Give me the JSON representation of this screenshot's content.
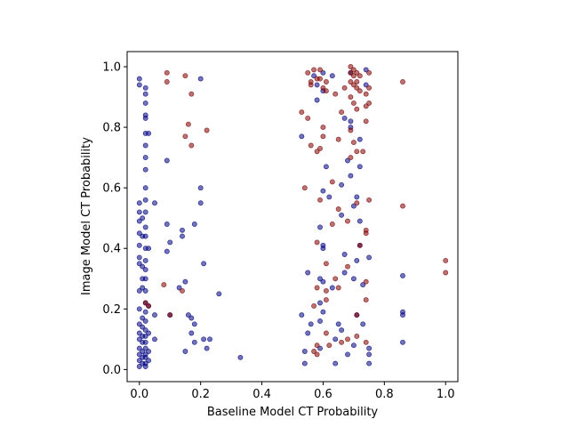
{
  "chart_data": {
    "type": "scatter",
    "title": "",
    "xlabel": "Baseline Model CT Probability",
    "ylabel": "Image Model CT Probability",
    "xlim": [
      -0.04,
      1.04
    ],
    "ylim": [
      -0.04,
      1.05
    ],
    "xticks": [
      0.0,
      0.2,
      0.4,
      0.6,
      0.8,
      1.0
    ],
    "xtick_labels": [
      "0.0",
      "0.2",
      "0.4",
      "0.6",
      "0.8",
      "1.0"
    ],
    "yticks": [
      0.0,
      0.2,
      0.4,
      0.6,
      0.8,
      1.0
    ],
    "ytick_labels": [
      "0.0",
      "0.2",
      "0.4",
      "0.6",
      "0.8",
      "1.0"
    ],
    "grid": false,
    "legend": "none",
    "series": [
      {
        "color": "#00007f",
        "alpha": 0.55,
        "points": [
          [
            0.0,
            0.96
          ],
          [
            0.0,
            0.94
          ],
          [
            0.0,
            0.55
          ],
          [
            0.0,
            0.52
          ],
          [
            0.0,
            0.49
          ],
          [
            0.0,
            0.45
          ],
          [
            0.0,
            0.41
          ],
          [
            0.0,
            0.37
          ],
          [
            0.0,
            0.35
          ],
          [
            0.0,
            0.26
          ],
          [
            0.0,
            0.2
          ],
          [
            0.0,
            0.15
          ],
          [
            0.0,
            0.12
          ],
          [
            0.0,
            0.1
          ],
          [
            0.0,
            0.07
          ],
          [
            0.0,
            0.05
          ],
          [
            0.0,
            0.03
          ],
          [
            0.0,
            0.01
          ],
          [
            0.01,
            0.5
          ],
          [
            0.01,
            0.44
          ],
          [
            0.01,
            0.34
          ],
          [
            0.01,
            0.3
          ],
          [
            0.01,
            0.27
          ],
          [
            0.01,
            0.17
          ],
          [
            0.01,
            0.14
          ],
          [
            0.01,
            0.11
          ],
          [
            0.01,
            0.09
          ],
          [
            0.01,
            0.06
          ],
          [
            0.01,
            0.04
          ],
          [
            0.01,
            0.02
          ],
          [
            0.02,
            0.93
          ],
          [
            0.02,
            0.91
          ],
          [
            0.02,
            0.88
          ],
          [
            0.02,
            0.84
          ],
          [
            0.02,
            0.83
          ],
          [
            0.02,
            0.78
          ],
          [
            0.02,
            0.74
          ],
          [
            0.02,
            0.7
          ],
          [
            0.02,
            0.66
          ],
          [
            0.02,
            0.6
          ],
          [
            0.02,
            0.56
          ],
          [
            0.02,
            0.52
          ],
          [
            0.02,
            0.47
          ],
          [
            0.02,
            0.44
          ],
          [
            0.02,
            0.4
          ],
          [
            0.02,
            0.36
          ],
          [
            0.02,
            0.33
          ],
          [
            0.02,
            0.3
          ],
          [
            0.02,
            0.26
          ],
          [
            0.02,
            0.22
          ],
          [
            0.02,
            0.19
          ],
          [
            0.02,
            0.16
          ],
          [
            0.02,
            0.13
          ],
          [
            0.02,
            0.11
          ],
          [
            0.02,
            0.09
          ],
          [
            0.02,
            0.07
          ],
          [
            0.02,
            0.05
          ],
          [
            0.02,
            0.04
          ],
          [
            0.02,
            0.02
          ],
          [
            0.02,
            0.01
          ],
          [
            0.03,
            0.78
          ],
          [
            0.03,
            0.4
          ],
          [
            0.03,
            0.21
          ],
          [
            0.03,
            0.12
          ],
          [
            0.03,
            0.06
          ],
          [
            0.03,
            0.03
          ],
          [
            0.05,
            0.55
          ],
          [
            0.05,
            0.18
          ],
          [
            0.05,
            0.1
          ],
          [
            0.09,
            0.69
          ],
          [
            0.09,
            0.48
          ],
          [
            0.09,
            0.39
          ],
          [
            0.1,
            0.42
          ],
          [
            0.1,
            0.18
          ],
          [
            0.13,
            0.27
          ],
          [
            0.14,
            0.46
          ],
          [
            0.14,
            0.44
          ],
          [
            0.15,
            0.29
          ],
          [
            0.15,
            0.06
          ],
          [
            0.16,
            0.18
          ],
          [
            0.17,
            0.17
          ],
          [
            0.17,
            0.12
          ],
          [
            0.18,
            0.48
          ],
          [
            0.18,
            0.15
          ],
          [
            0.18,
            0.09
          ],
          [
            0.2,
            0.96
          ],
          [
            0.2,
            0.6
          ],
          [
            0.2,
            0.55
          ],
          [
            0.21,
            0.35
          ],
          [
            0.21,
            0.1
          ],
          [
            0.22,
            0.07
          ],
          [
            0.23,
            0.1
          ],
          [
            0.26,
            0.25
          ],
          [
            0.33,
            0.04
          ],
          [
            0.53,
            0.77
          ],
          [
            0.53,
            0.18
          ],
          [
            0.54,
            0.06
          ],
          [
            0.54,
            0.02
          ],
          [
            0.55,
            0.12
          ],
          [
            0.55,
            0.32
          ],
          [
            0.56,
            0.15
          ],
          [
            0.57,
            0.97
          ],
          [
            0.58,
            0.94
          ],
          [
            0.58,
            0.89
          ],
          [
            0.59,
            0.47
          ],
          [
            0.59,
            0.3
          ],
          [
            0.59,
            0.22
          ],
          [
            0.59,
            0.16
          ],
          [
            0.59,
            0.07
          ],
          [
            0.6,
            0.98
          ],
          [
            0.6,
            0.92
          ],
          [
            0.6,
            0.59
          ],
          [
            0.6,
            0.41
          ],
          [
            0.6,
            0.4
          ],
          [
            0.6,
            0.29
          ],
          [
            0.6,
            0.19
          ],
          [
            0.61,
            0.67
          ],
          [
            0.62,
            0.57
          ],
          [
            0.63,
            0.97
          ],
          [
            0.63,
            0.27
          ],
          [
            0.64,
            0.1
          ],
          [
            0.64,
            0.02
          ],
          [
            0.65,
            0.15
          ],
          [
            0.66,
            0.61
          ],
          [
            0.66,
            0.51
          ],
          [
            0.66,
            0.13
          ],
          [
            0.67,
            0.83
          ],
          [
            0.67,
            0.38
          ],
          [
            0.67,
            0.32
          ],
          [
            0.68,
            0.69
          ],
          [
            0.68,
            0.05
          ],
          [
            0.69,
            0.98
          ],
          [
            0.69,
            0.82
          ],
          [
            0.69,
            0.8
          ],
          [
            0.69,
            0.64
          ],
          [
            0.7,
            0.54
          ],
          [
            0.7,
            0.3
          ],
          [
            0.7,
            0.08
          ],
          [
            0.71,
            0.57
          ],
          [
            0.71,
            0.36
          ],
          [
            0.71,
            0.18
          ],
          [
            0.72,
            0.76
          ],
          [
            0.72,
            0.67
          ],
          [
            0.72,
            0.49
          ],
          [
            0.72,
            0.41
          ],
          [
            0.73,
            0.28
          ],
          [
            0.73,
            0.15
          ],
          [
            0.74,
            0.99
          ],
          [
            0.74,
            0.94
          ],
          [
            0.75,
            0.37
          ],
          [
            0.75,
            0.07
          ],
          [
            0.75,
            0.05
          ],
          [
            0.75,
            0.02
          ],
          [
            0.86,
            0.31
          ],
          [
            0.86,
            0.19
          ],
          [
            0.86,
            0.18
          ],
          [
            0.86,
            0.09
          ]
        ]
      },
      {
        "color": "#7f0000",
        "alpha": 0.55,
        "points": [
          [
            0.02,
            0.22
          ],
          [
            0.03,
            0.21
          ],
          [
            0.08,
            0.28
          ],
          [
            0.09,
            0.98
          ],
          [
            0.09,
            0.95
          ],
          [
            0.1,
            0.18
          ],
          [
            0.14,
            0.26
          ],
          [
            0.15,
            0.97
          ],
          [
            0.15,
            0.77
          ],
          [
            0.16,
            0.81
          ],
          [
            0.17,
            0.74
          ],
          [
            0.17,
            0.91
          ],
          [
            0.22,
            0.79
          ],
          [
            0.53,
            0.85
          ],
          [
            0.54,
            0.6
          ],
          [
            0.55,
            0.98
          ],
          [
            0.55,
            0.83
          ],
          [
            0.56,
            0.95
          ],
          [
            0.56,
            0.94
          ],
          [
            0.56,
            0.74
          ],
          [
            0.57,
            0.99
          ],
          [
            0.57,
            0.21
          ],
          [
            0.57,
            0.06
          ],
          [
            0.58,
            0.96
          ],
          [
            0.58,
            0.72
          ],
          [
            0.58,
            0.42
          ],
          [
            0.58,
            0.27
          ],
          [
            0.58,
            0.08
          ],
          [
            0.58,
            0.05
          ],
          [
            0.59,
            0.99
          ],
          [
            0.59,
            0.96
          ],
          [
            0.59,
            0.73
          ],
          [
            0.59,
            0.56
          ],
          [
            0.6,
            0.93
          ],
          [
            0.6,
            0.8
          ],
          [
            0.6,
            0.77
          ],
          [
            0.61,
            0.95
          ],
          [
            0.61,
            0.92
          ],
          [
            0.61,
            0.35
          ],
          [
            0.61,
            0.26
          ],
          [
            0.61,
            0.23
          ],
          [
            0.61,
            0.12
          ],
          [
            0.62,
            0.08
          ],
          [
            0.63,
            0.62
          ],
          [
            0.63,
            0.48
          ],
          [
            0.64,
            0.91
          ],
          [
            0.64,
            0.3
          ],
          [
            0.65,
            0.76
          ],
          [
            0.65,
            0.53
          ],
          [
            0.65,
            0.27
          ],
          [
            0.66,
            0.85
          ],
          [
            0.66,
            0.09
          ],
          [
            0.67,
            0.93
          ],
          [
            0.68,
            0.49
          ],
          [
            0.68,
            0.34
          ],
          [
            0.68,
            0.1
          ],
          [
            0.69,
            1.0
          ],
          [
            0.69,
            0.98
          ],
          [
            0.69,
            0.95
          ],
          [
            0.69,
            0.9
          ],
          [
            0.69,
            0.79
          ],
          [
            0.69,
            0.7
          ],
          [
            0.7,
            0.99
          ],
          [
            0.7,
            0.97
          ],
          [
            0.7,
            0.94
          ],
          [
            0.7,
            0.88
          ],
          [
            0.7,
            0.75
          ],
          [
            0.71,
            0.98
          ],
          [
            0.71,
            0.95
          ],
          [
            0.71,
            0.93
          ],
          [
            0.71,
            0.86
          ],
          [
            0.71,
            0.72
          ],
          [
            0.71,
            0.55
          ],
          [
            0.71,
            0.18
          ],
          [
            0.71,
            0.11
          ],
          [
            0.72,
            0.97
          ],
          [
            0.72,
            0.92
          ],
          [
            0.72,
            0.41
          ],
          [
            0.73,
            0.72
          ],
          [
            0.74,
            0.91
          ],
          [
            0.74,
            0.87
          ],
          [
            0.74,
            0.82
          ],
          [
            0.74,
            0.46
          ],
          [
            0.74,
            0.45
          ],
          [
            0.74,
            0.29
          ],
          [
            0.74,
            0.23
          ],
          [
            0.74,
            0.09
          ],
          [
            0.75,
            0.98
          ],
          [
            0.75,
            0.93
          ],
          [
            0.75,
            0.88
          ],
          [
            0.75,
            0.56
          ],
          [
            0.86,
            0.95
          ],
          [
            0.86,
            0.54
          ],
          [
            1.0,
            0.36
          ],
          [
            1.0,
            0.32
          ]
        ]
      }
    ]
  }
}
